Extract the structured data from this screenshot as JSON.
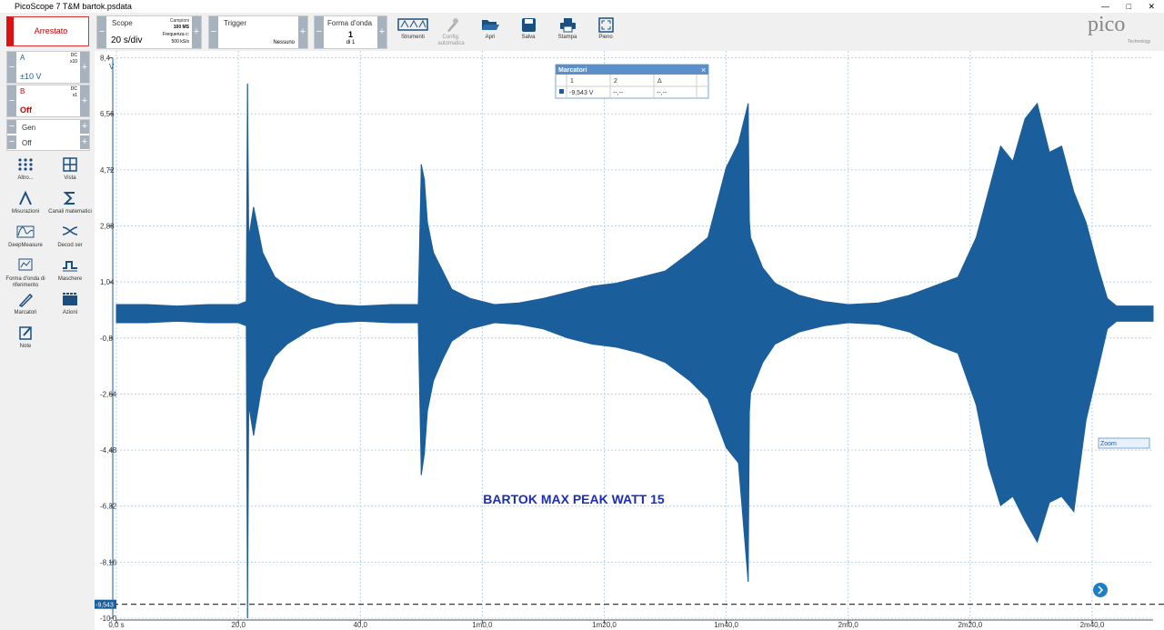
{
  "window": {
    "title": "PicoScope 7 T&M bartok.psdata"
  },
  "toolbar": {
    "run_state": "Arrestato",
    "scope": {
      "label": "Scope",
      "timebase": "20 s/div",
      "samples_label": "Campioni",
      "samples": "100 MS",
      "rate_label": "Frequenza c:",
      "rate": "500 kS/s"
    },
    "trigger": {
      "label": "Trigger",
      "mode": "Nessuno"
    },
    "waveform": {
      "label": "Forma d'onda",
      "current": "1",
      "of": "di 1"
    },
    "buttons": [
      "Strumenti",
      "Config. automatica",
      "Apri",
      "Salva",
      "Stampa",
      "Pieno"
    ],
    "logo": {
      "name": "pico",
      "sub": "Technology"
    }
  },
  "channels": [
    {
      "name": "A",
      "coupling": "DC",
      "probe": "x10",
      "range": "±10 V"
    },
    {
      "name": "B",
      "coupling": "DC",
      "probe": "x1",
      "range": "Off"
    }
  ],
  "generator": {
    "name": "Gen",
    "state": "Off"
  },
  "side_tools": [
    "Altro...",
    "Vista",
    "Misurazioni",
    "Canali matematici",
    "DeepMeasure",
    "Decod ser",
    "Forma d'onda di riferimento",
    "Maschere",
    "Marcatori",
    "Azioni",
    "Note"
  ],
  "markers_window": {
    "title": "Marcatori",
    "headers": [
      "1",
      "2",
      "Δ"
    ],
    "row": [
      "-9,543 V",
      "--,--",
      "--,--"
    ]
  },
  "zoom_label": "Zoom",
  "chart_data": {
    "type": "area",
    "y_unit": "V",
    "annotation": "BARTOK MAX PEAK WATT 15",
    "xlim": [
      0,
      170
    ],
    "ylim": [
      -10,
      8.4
    ],
    "xticks": [
      {
        "value": 0,
        "label": "0,0 s"
      },
      {
        "value": 20,
        "label": "20,0"
      },
      {
        "value": 40,
        "label": "40,0"
      },
      {
        "value": 60,
        "label": "1m0,0"
      },
      {
        "value": 80,
        "label": "1m20,0"
      },
      {
        "value": 100,
        "label": "1m40,0"
      },
      {
        "value": 120,
        "label": "2m0,0"
      },
      {
        "value": 140,
        "label": "2m20,0"
      },
      {
        "value": 160,
        "label": "2m40,0"
      }
    ],
    "yticks": [
      {
        "value": 8.4,
        "label": "8,4"
      },
      {
        "value": 6.56,
        "label": "6,56"
      },
      {
        "value": 4.72,
        "label": "4,72"
      },
      {
        "value": 2.88,
        "label": "2,88"
      },
      {
        "value": 1.04,
        "label": "1,04"
      },
      {
        "value": -0.8,
        "label": "-0,8"
      },
      {
        "value": -2.64,
        "label": "-2,64"
      },
      {
        "value": -4.48,
        "label": "-4,48"
      },
      {
        "value": -6.32,
        "label": "-6,32"
      },
      {
        "value": -8.16,
        "label": "-8,16"
      },
      {
        "value": -10,
        "label": "-10,0"
      }
    ],
    "grid": true,
    "color": "#1a5e9c",
    "marker": {
      "value": -9.543,
      "label": "-9,543"
    },
    "trace": {
      "t": [
        0,
        5,
        10,
        15,
        20,
        21.3,
        21.5,
        21.7,
        22.5,
        24,
        26,
        28,
        32,
        36,
        40,
        45,
        49.5,
        50,
        50.5,
        51,
        52,
        53.5,
        55,
        58,
        62,
        66,
        70,
        74,
        78,
        82,
        86,
        90,
        94,
        97,
        100,
        102,
        103.6,
        103.8,
        104,
        106,
        108,
        112,
        116,
        120,
        125,
        130,
        134,
        138,
        141,
        143,
        145,
        147,
        149,
        151,
        153,
        155,
        157,
        159,
        161,
        162.5,
        164,
        168,
        170
      ],
      "max": [
        0.3,
        0.3,
        0.25,
        0.3,
        0.3,
        0.4,
        7.55,
        2.5,
        3.5,
        2.0,
        1.2,
        0.9,
        0.5,
        0.3,
        0.25,
        0.3,
        0.3,
        4.9,
        4.4,
        3.0,
        2.0,
        1.4,
        0.8,
        0.5,
        0.3,
        0.35,
        0.5,
        0.7,
        0.9,
        1.0,
        1.2,
        1.4,
        2.0,
        2.5,
        4.8,
        5.6,
        6.9,
        3.0,
        2.5,
        1.5,
        1.0,
        0.6,
        0.4,
        0.3,
        0.35,
        0.6,
        0.9,
        1.2,
        2.5,
        4.0,
        5.5,
        5.0,
        6.4,
        6.9,
        5.3,
        5.5,
        4.0,
        3.0,
        1.5,
        0.5,
        0.25,
        0.25,
        0.25
      ],
      "min": [
        -0.3,
        -0.3,
        -0.25,
        -0.3,
        -0.3,
        -0.4,
        -10,
        -3.0,
        -4.0,
        -2.2,
        -1.4,
        -1.0,
        -0.5,
        -0.3,
        -0.25,
        -0.3,
        -0.3,
        -5.3,
        -4.6,
        -3.2,
        -2.2,
        -1.5,
        -0.9,
        -0.5,
        -0.3,
        -0.35,
        -0.5,
        -0.8,
        -1.0,
        -1.1,
        -1.3,
        -1.6,
        -2.2,
        -2.8,
        -4.4,
        -4.9,
        -8.8,
        -3.2,
        -2.6,
        -1.6,
        -1.0,
        -0.6,
        -0.4,
        -0.3,
        -0.35,
        -0.6,
        -1.0,
        -1.3,
        -3.0,
        -5.0,
        -6.3,
        -6.0,
        -6.8,
        -7.5,
        -6.2,
        -6.0,
        -6.5,
        -3.5,
        -1.8,
        -0.5,
        -0.25,
        -0.25,
        -0.25
      ]
    }
  }
}
